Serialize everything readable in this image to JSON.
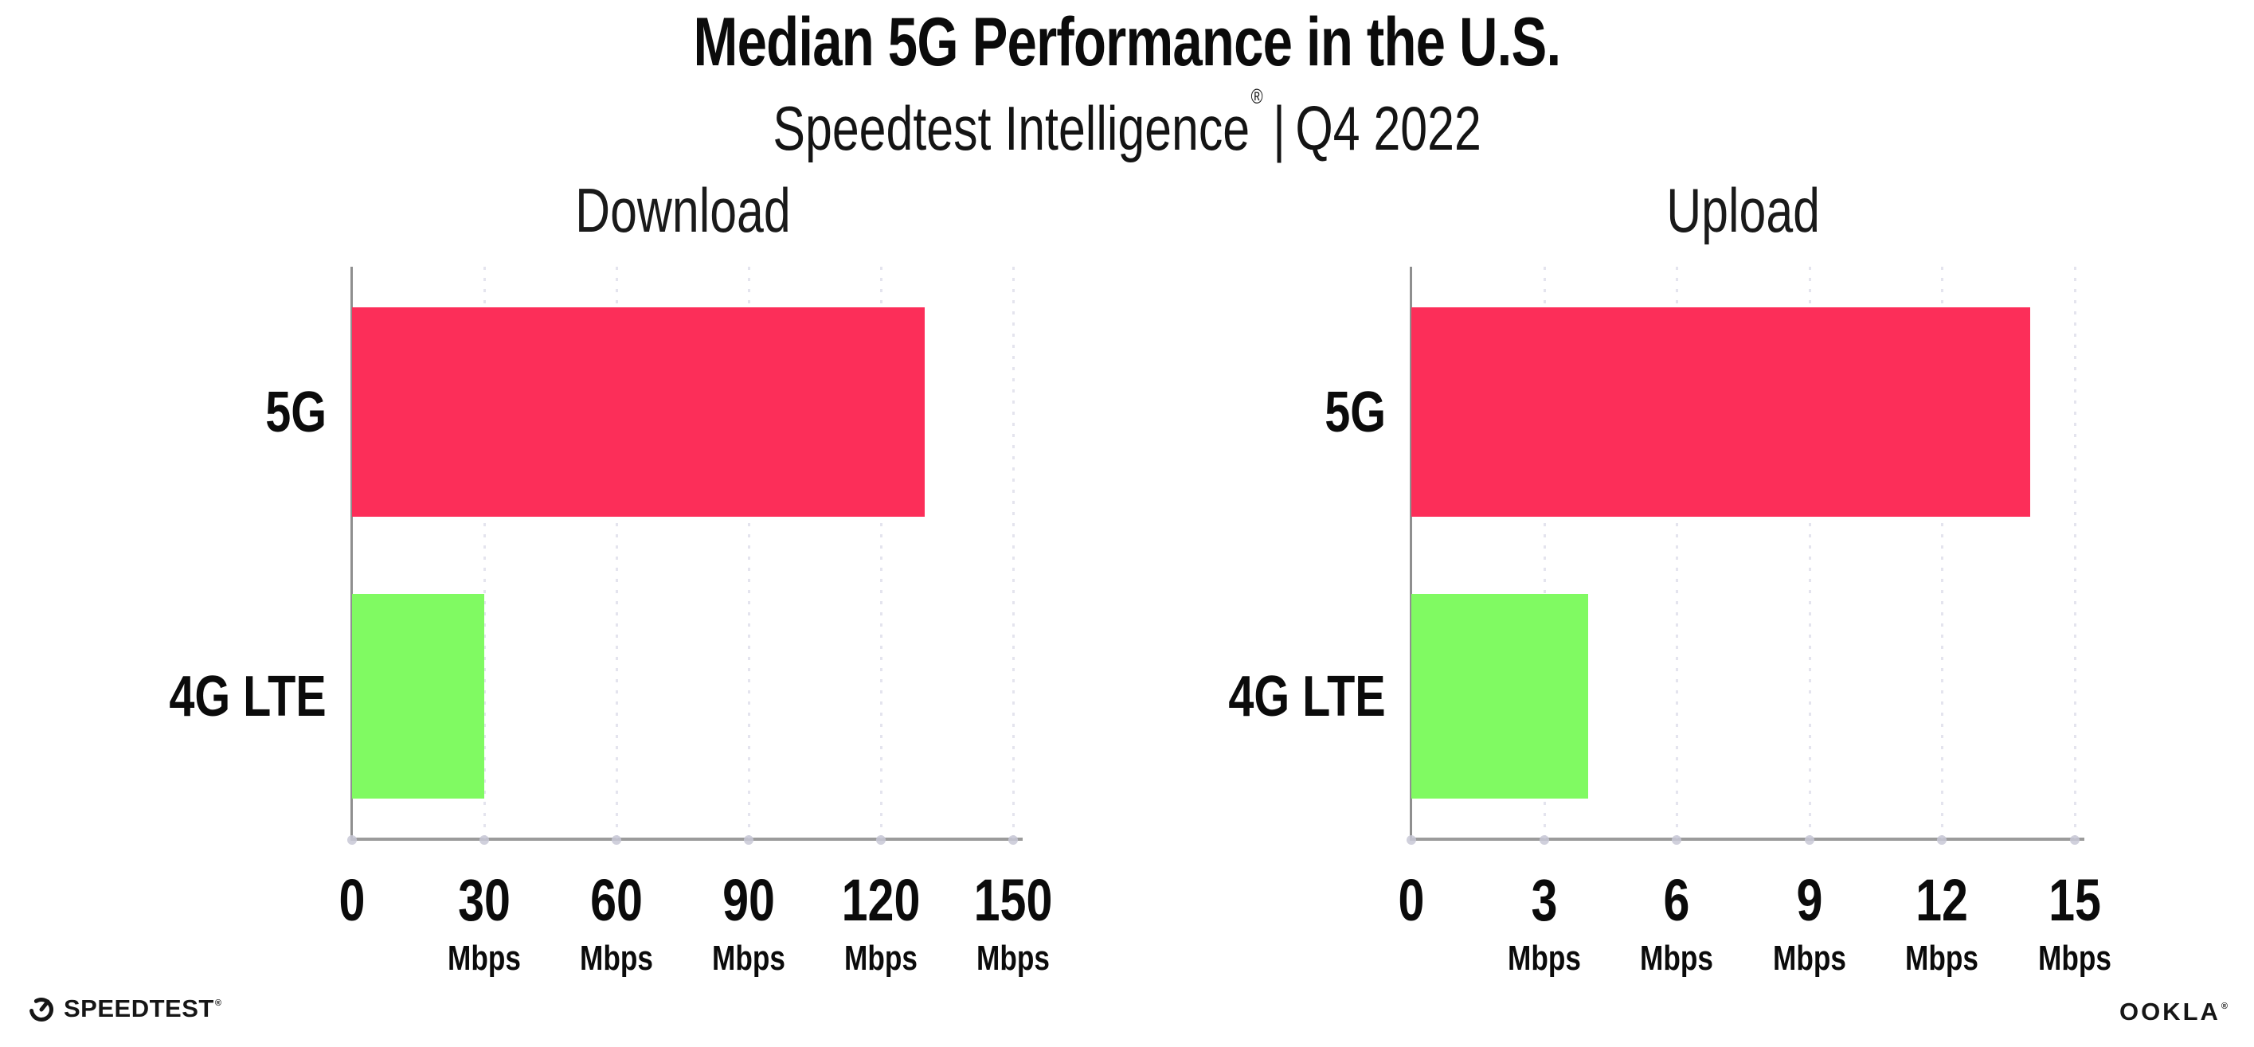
{
  "header": {
    "title": "Median 5G Performance in the U.S.",
    "subtitle_brand": "Speedtest Intelligence",
    "subtitle_mark": "®",
    "subtitle_sep": "|",
    "subtitle_period": "Q4 2022"
  },
  "chart_data": [
    {
      "type": "bar",
      "orientation": "horizontal",
      "title": "Download",
      "categories": [
        "5G",
        "4G LTE"
      ],
      "values": [
        130,
        30
      ],
      "unit": "Mbps",
      "xlim": [
        0,
        150
      ],
      "xticks": [
        0,
        30,
        60,
        90,
        120,
        150
      ],
      "tick_unit_label": "Mbps",
      "bar_colors": [
        "#FC2E59",
        "#80FA62"
      ],
      "grid": "dotted-vertical",
      "legend": "none"
    },
    {
      "type": "bar",
      "orientation": "horizontal",
      "title": "Upload",
      "categories": [
        "5G",
        "4G LTE"
      ],
      "values": [
        14,
        4
      ],
      "unit": "Mbps",
      "xlim": [
        0,
        15
      ],
      "xticks": [
        0,
        3,
        6,
        9,
        12,
        15
      ],
      "tick_unit_label": "Mbps",
      "bar_colors": [
        "#FC2E59",
        "#80FA62"
      ],
      "grid": "dotted-vertical",
      "legend": "none"
    }
  ],
  "footer": {
    "speedtest_label": "SPEEDTEST",
    "speedtest_mark": "®",
    "ookla_label": "OOKLA",
    "ookla_mark": "®"
  },
  "colors": {
    "bar_5g": "#FC2E59",
    "bar_4g_lte": "#80FA62",
    "axis": "#9B9B9B",
    "grid_dot": "#E4E4EE",
    "tick_dot": "#C8C8D6",
    "text": "#0B0B0B"
  }
}
